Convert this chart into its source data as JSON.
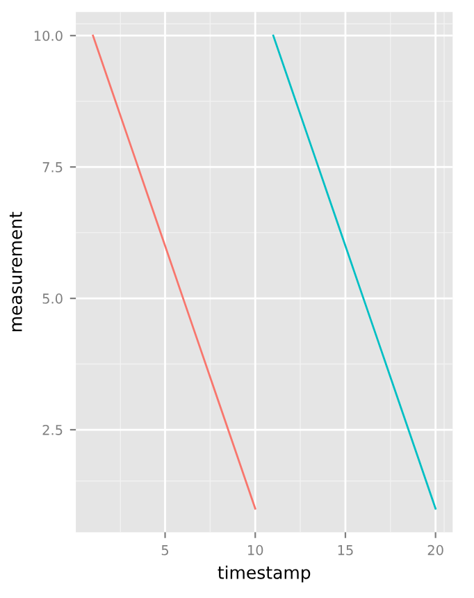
{
  "chart_data": {
    "type": "line",
    "xlabel": "timestamp",
    "ylabel": "measurement",
    "series": [
      {
        "color": "#f8766d",
        "x": [
          1,
          2,
          3,
          4,
          5,
          6,
          7,
          8,
          9,
          10
        ],
        "values": [
          10,
          9,
          8,
          7,
          6,
          5,
          4,
          3,
          2,
          1
        ]
      },
      {
        "color": "#00bfc4",
        "x": [
          11,
          12,
          13,
          14,
          15,
          16,
          17,
          18,
          19,
          20
        ],
        "values": [
          10,
          9,
          8,
          7,
          6,
          5,
          4,
          3,
          2,
          1
        ]
      }
    ],
    "xlim": [
      0.05,
      20.95
    ],
    "ylim": [
      0.55,
      10.45
    ],
    "xticks": [
      5,
      10,
      15,
      20
    ],
    "yticks": [
      {
        "value": 2.5,
        "label": "2.5"
      },
      {
        "value": 5,
        "label": "5.0"
      },
      {
        "value": 7.5,
        "label": "7.5"
      },
      {
        "value": 10,
        "label": "10.0"
      }
    ],
    "grid": true,
    "legend": false,
    "marker": "none",
    "line_style": "solid"
  }
}
